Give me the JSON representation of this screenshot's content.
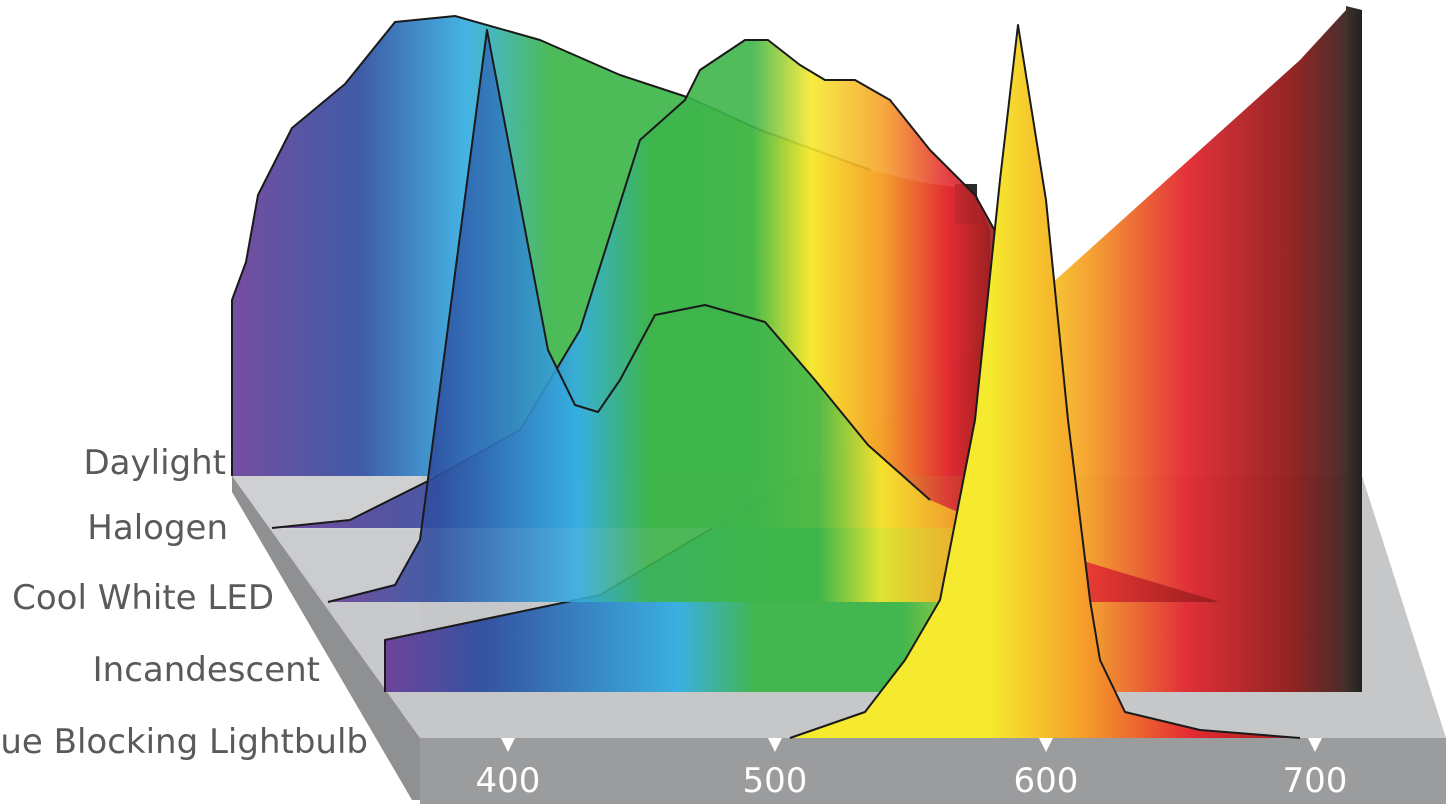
{
  "rows": [
    {
      "key": "daylight",
      "label": "Daylight"
    },
    {
      "key": "halogen",
      "label": "Halogen"
    },
    {
      "key": "cool_white_led",
      "label": "Cool White LED"
    },
    {
      "key": "incandescent",
      "label": "Incandescent"
    },
    {
      "key": "blue_blocking",
      "label": "Blue Blocking Lightbulb"
    }
  ],
  "axis": {
    "ticks": [
      "400",
      "500",
      "600",
      "700"
    ]
  },
  "colors": {
    "violet": "#6a3e98",
    "blue": "#2e4ea0",
    "cyan": "#35aee2",
    "green": "#3db54a",
    "yellow": "#f6ea2f",
    "orange": "#f5a02a",
    "red": "#e22a32",
    "darkred": "#8e1c1b",
    "brown": "#4e3a2c",
    "floor": "#c8c9cb",
    "floor_edge": "#8a8b8d",
    "floor_front": "#9a9b9d"
  }
}
